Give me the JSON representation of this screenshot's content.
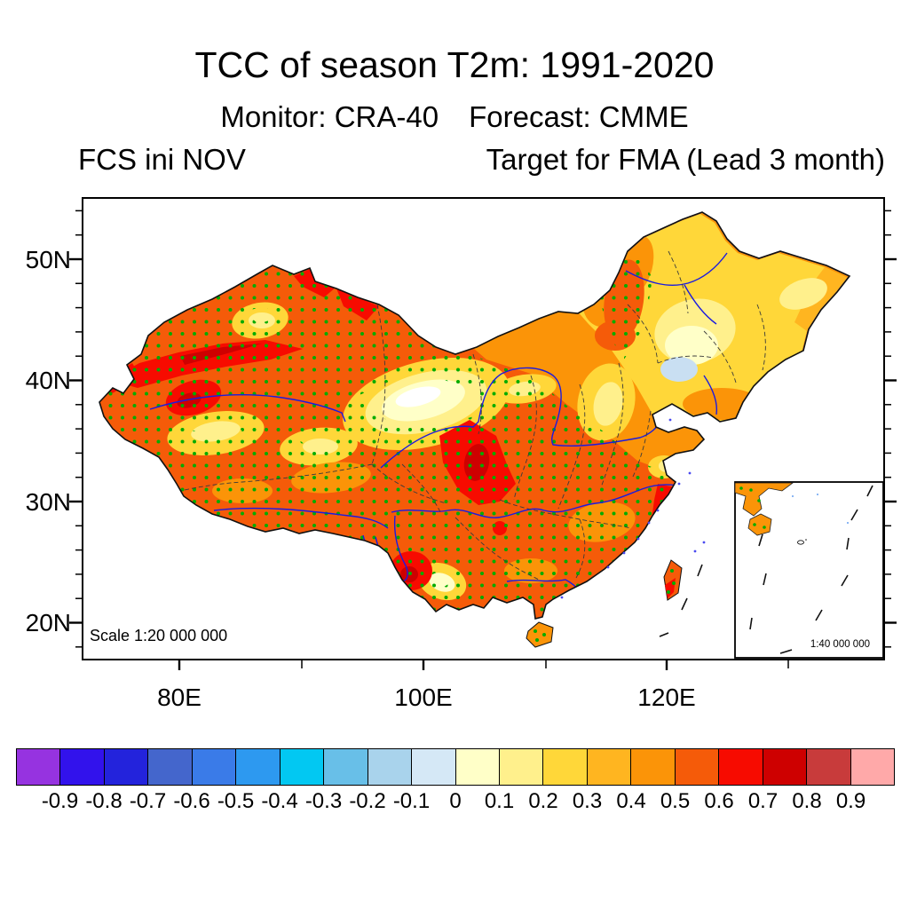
{
  "header": {
    "title": "TCC of season T2m: 1991-2020",
    "monitor_label": "Monitor: CRA-40",
    "forecast_label": "Forecast: CMME",
    "init_label": "FCS ini NOV",
    "target_label": "Target for FMA (Lead 3 month)"
  },
  "axes": {
    "y_labels": [
      "50N",
      "40N",
      "30N",
      "20N"
    ],
    "x_labels": [
      "80E",
      "100E",
      "120E"
    ]
  },
  "map": {
    "scale_text": "Scale 1:20 000 000",
    "inset_scale_text": "1:40 000 000"
  },
  "colorbar": {
    "colors": [
      "#9633E0",
      "#3212EC",
      "#2323DC",
      "#4466CC",
      "#3A7BE8",
      "#2D99F0",
      "#02C8F2",
      "#68BFE8",
      "#A9D3EC",
      "#D5E8F6",
      "#FFFFC8",
      "#FFF08C",
      "#FFD739",
      "#FFB520",
      "#FB9408",
      "#F55B09",
      "#F70B00",
      "#CE0000",
      "#C83B3B",
      "#FFA9A9"
    ],
    "tick_labels": [
      "-0.9",
      "-0.8",
      "-0.7",
      "-0.6",
      "-0.5",
      "-0.4",
      "-0.3",
      "-0.2",
      "-0.1",
      "0",
      "0.1",
      "0.2",
      "0.3",
      "0.4",
      "0.5",
      "0.6",
      "0.7",
      "0.8",
      "0.9"
    ]
  },
  "chart_data": {
    "type": "filled_contour_map",
    "title": "TCC of season T2m: 1991-2020",
    "monitor": "CRA-40",
    "forecast": "CMME",
    "initialization": "FCS ini NOV",
    "target": "Target for FMA (Lead 3 month)",
    "region": "China",
    "lat_ticks": [
      "20N",
      "30N",
      "40N",
      "50N"
    ],
    "lon_ticks": [
      "80E",
      "100E",
      "120E"
    ],
    "lat_range_deg_n": [
      17,
      54.5
    ],
    "lon_range_deg_e": [
      72,
      138
    ],
    "contour_levels": [
      -0.9,
      -0.8,
      -0.7,
      -0.6,
      -0.5,
      -0.4,
      -0.3,
      -0.2,
      -0.1,
      0,
      0.1,
      0.2,
      0.3,
      0.4,
      0.5,
      0.6,
      0.7,
      0.8,
      0.9
    ],
    "palette": [
      "#9633E0",
      "#3212EC",
      "#2323DC",
      "#4466CC",
      "#3A7BE8",
      "#2D99F0",
      "#02C8F2",
      "#68BFE8",
      "#A9D3EC",
      "#D5E8F6",
      "#FFFFC8",
      "#FFF08C",
      "#FFD739",
      "#FFB520",
      "#FB9408",
      "#F55B09",
      "#F70B00",
      "#CE0000",
      "#C83B3B",
      "#FFA9A9"
    ],
    "overlays": [
      "green stipple dots over western and southern China",
      "blue rivers",
      "dashed province boundaries",
      "black national boundary",
      "South China Sea inset box"
    ],
    "map_scale": "1:20 000 000",
    "inset_scale": "1:40 000 000",
    "value_summary": [
      {
        "area": "Xinjiang / Northwest",
        "tcc": "0.5 to 0.8, densely stippled, red cores along Tianshan"
      },
      {
        "area": "Tibetan Plateau / Southwest",
        "tcc": "0.5 to 0.7, stippled"
      },
      {
        "area": "Gansu-Ningxia bullseye",
        "tcc": "0 to 0.3 local minimum (cream/white core)"
      },
      {
        "area": "Sichuan-Shaanxi border red patch",
        "tcc": "0.6 to 0.8"
      },
      {
        "area": "Yunnan red core",
        "tcc": "0.6 to 0.8"
      },
      {
        "area": "Northeast China",
        "tcc": "0.1 to 0.4 (yellows)"
      },
      {
        "area": "Bohai rim patch",
        "tcc": "-0.2 to 0 (light blue)"
      },
      {
        "area": "South / Southeast coast",
        "tcc": "0.5 to 0.7, stippled, red spots near Fujian coast"
      }
    ]
  }
}
